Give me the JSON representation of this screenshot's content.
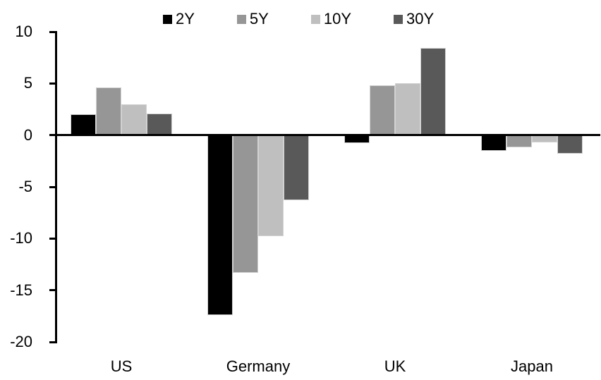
{
  "chart_data": {
    "type": "bar",
    "title": "",
    "xlabel": "",
    "ylabel": "",
    "categories": [
      "US",
      "Germany",
      "UK",
      "Japan"
    ],
    "series": [
      {
        "name": "2Y",
        "color": "#000000",
        "values": [
          2.0,
          -17.4,
          -0.8,
          -1.5
        ]
      },
      {
        "name": "5Y",
        "color": "#969696",
        "values": [
          4.6,
          -13.3,
          4.8,
          -1.2
        ]
      },
      {
        "name": "10Y",
        "color": "#bfbfbf",
        "values": [
          3.0,
          -9.8,
          5.0,
          -0.7
        ]
      },
      {
        "name": "30Y",
        "color": "#595959",
        "values": [
          2.1,
          -6.3,
          8.4,
          -1.8
        ]
      }
    ],
    "ylim": [
      -20,
      10
    ],
    "yticks": [
      10,
      5,
      0,
      -5,
      -10,
      -15,
      -20
    ],
    "grid": false,
    "legend_position": "top",
    "axis_color": "#000000",
    "bar_outline_color": "#d2d2d2"
  }
}
